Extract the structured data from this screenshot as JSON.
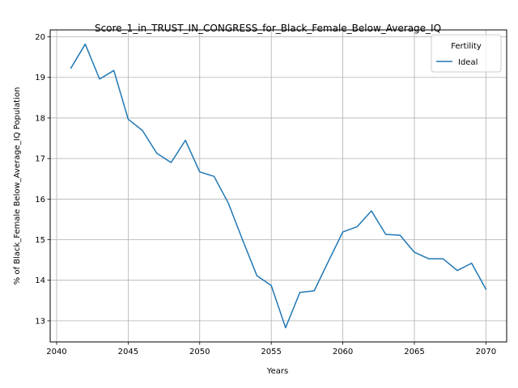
{
  "chart_data": {
    "type": "line",
    "title": "Score_1_in_TRUST_IN_CONGRESS_for_Black_Female_Below_Average_IQ",
    "xlabel": "Years",
    "ylabel": "% of Black_Female Below_Average_IQ Population",
    "xlim": [
      2039.55,
      2071.45
    ],
    "ylim": [
      12.48,
      20.17
    ],
    "grid": true,
    "legend": {
      "title": "Fertility",
      "placement": "top-right"
    },
    "x_ticks": [
      2040,
      2045,
      2050,
      2055,
      2060,
      2065,
      2070
    ],
    "y_ticks": [
      13,
      14,
      15,
      16,
      17,
      18,
      19,
      20
    ],
    "series": [
      {
        "name": "Ideal",
        "color": "#1f77b4",
        "x": [
          2041,
          2042,
          2043,
          2044,
          2045,
          2046,
          2047,
          2048,
          2049,
          2050,
          2051,
          2052,
          2053,
          2054,
          2055,
          2056,
          2057,
          2058,
          2059,
          2060,
          2061,
          2062,
          2063,
          2064,
          2065,
          2066,
          2067,
          2068,
          2069,
          2070
        ],
        "values": [
          19.23,
          19.82,
          18.96,
          19.17,
          17.97,
          17.69,
          17.13,
          16.9,
          17.45,
          16.67,
          16.56,
          15.9,
          14.99,
          14.11,
          13.87,
          12.83,
          13.7,
          13.74,
          14.47,
          15.19,
          15.32,
          15.71,
          15.13,
          15.11,
          14.69,
          14.53,
          14.53,
          14.24,
          14.42,
          13.78
        ]
      }
    ]
  }
}
